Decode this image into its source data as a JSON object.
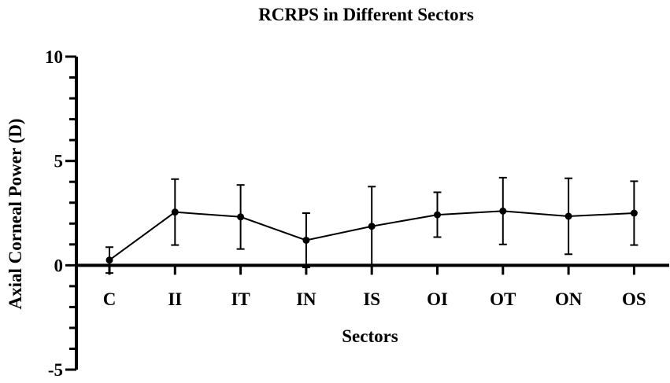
{
  "chart_data": {
    "type": "line",
    "title": "RCRPS in Different Sectors",
    "xlabel": "Sectors",
    "ylabel": "Axial Corneal Power  (D)",
    "categories": [
      "C",
      "II",
      "IT",
      "IN",
      "IS",
      "OI",
      "OT",
      "ON",
      "OS"
    ],
    "series": [
      {
        "values": [
          0.25,
          2.55,
          2.32,
          1.2,
          1.87,
          2.42,
          2.6,
          2.35,
          2.5
        ],
        "error_upper": [
          0.87,
          4.13,
          3.85,
          2.5,
          3.77,
          3.5,
          4.2,
          4.17,
          4.03
        ],
        "error_lower": [
          -0.37,
          0.97,
          0.78,
          -0.1,
          -0.03,
          1.35,
          1.0,
          0.53,
          0.97
        ]
      }
    ],
    "ylim": [
      -5,
      10
    ],
    "yticks": [
      "10",
      "5",
      "0",
      "-5"
    ],
    "grid": false,
    "legend": "none"
  }
}
